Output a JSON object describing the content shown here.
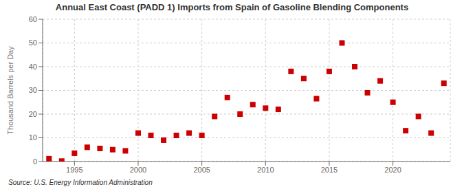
{
  "chart_data": {
    "type": "scatter",
    "title": "Annual East Coast (PADD 1) Imports from Spain of Gasoline Blending Components",
    "ylabel": "Thousand Barrels per Day",
    "source": "Source: U.S. Energy Information Administration",
    "x": [
      1993,
      1994,
      1995,
      1996,
      1997,
      1998,
      1999,
      2000,
      2001,
      2002,
      2003,
      2004,
      2005,
      2006,
      2007,
      2008,
      2009,
      2010,
      2011,
      2012,
      2013,
      2014,
      2015,
      2016,
      2017,
      2018,
      2019,
      2020,
      2021,
      2022,
      2023,
      2024
    ],
    "values": [
      1.2,
      0.2,
      3.5,
      6.0,
      5.5,
      5.0,
      4.5,
      12.0,
      11.0,
      9.0,
      11.0,
      12.0,
      11.0,
      19.0,
      27.0,
      20.0,
      24.0,
      22.5,
      22.0,
      38.0,
      35.0,
      26.5,
      38.0,
      50.0,
      40.0,
      29.0,
      34.0,
      25.0,
      13.0,
      19.0,
      12.0,
      33.0
    ],
    "color": "#cc0000",
    "marker": "square",
    "xlim": [
      1992.5,
      2024.5
    ],
    "ylim": [
      0,
      60
    ],
    "xticks": [
      1995,
      2000,
      2005,
      2010,
      2015,
      2020
    ],
    "yticks": [
      0,
      10,
      20,
      30,
      40,
      50,
      60
    ],
    "grid": true
  }
}
